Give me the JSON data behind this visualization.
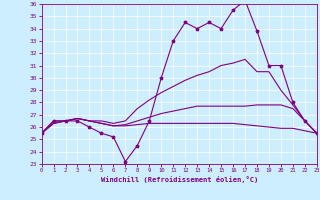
{
  "xlabel": "Windchill (Refroidissement éolien,°C)",
  "xlim": [
    0,
    23
  ],
  "ylim": [
    23,
    36
  ],
  "yticks": [
    23,
    24,
    25,
    26,
    27,
    28,
    29,
    30,
    31,
    32,
    33,
    34,
    35,
    36
  ],
  "xticks": [
    0,
    1,
    2,
    3,
    4,
    5,
    6,
    7,
    8,
    9,
    10,
    11,
    12,
    13,
    14,
    15,
    16,
    17,
    18,
    19,
    20,
    21,
    22,
    23
  ],
  "bg_color": "#cceeff",
  "line_color": "#800080",
  "grid_color": "#ffffff",
  "series": {
    "line1_x": [
      0,
      1,
      2,
      3,
      4,
      5,
      6,
      7,
      8,
      9,
      10,
      11,
      12,
      13,
      14,
      15,
      16,
      17,
      18,
      19,
      20,
      21,
      22,
      23
    ],
    "line1_y": [
      25.5,
      26.5,
      26.5,
      26.5,
      26.0,
      25.5,
      25.2,
      23.2,
      24.5,
      26.5,
      30.0,
      33.0,
      34.5,
      34.0,
      34.5,
      34.0,
      35.5,
      36.3,
      33.8,
      31.0,
      31.0,
      28.0,
      26.5,
      25.5
    ],
    "line2_x": [
      0,
      1,
      2,
      3,
      4,
      5,
      6,
      7,
      8,
      9,
      10,
      11,
      12,
      13,
      14,
      15,
      16,
      17,
      18,
      19,
      20,
      21,
      22,
      23
    ],
    "line2_y": [
      25.5,
      26.5,
      26.5,
      26.7,
      26.5,
      26.5,
      26.3,
      26.5,
      27.5,
      28.2,
      28.8,
      29.3,
      29.8,
      30.2,
      30.5,
      31.0,
      31.2,
      31.5,
      30.5,
      30.5,
      29.0,
      27.8,
      26.5,
      25.5
    ],
    "line3_x": [
      0,
      1,
      2,
      3,
      4,
      5,
      6,
      7,
      8,
      9,
      10,
      11,
      12,
      13,
      14,
      15,
      16,
      17,
      18,
      19,
      20,
      21,
      22,
      23
    ],
    "line3_y": [
      25.5,
      26.3,
      26.5,
      26.7,
      26.5,
      26.3,
      26.1,
      26.2,
      26.5,
      26.8,
      27.1,
      27.3,
      27.5,
      27.7,
      27.7,
      27.7,
      27.7,
      27.7,
      27.8,
      27.8,
      27.8,
      27.5,
      26.5,
      25.5
    ],
    "line4_x": [
      0,
      1,
      2,
      3,
      4,
      5,
      6,
      7,
      8,
      9,
      10,
      11,
      12,
      13,
      14,
      15,
      16,
      17,
      18,
      19,
      20,
      21,
      22,
      23
    ],
    "line4_y": [
      25.5,
      26.3,
      26.5,
      26.7,
      26.5,
      26.3,
      26.1,
      26.1,
      26.2,
      26.3,
      26.3,
      26.3,
      26.3,
      26.3,
      26.3,
      26.3,
      26.3,
      26.2,
      26.1,
      26.0,
      25.9,
      25.9,
      25.7,
      25.5
    ]
  }
}
